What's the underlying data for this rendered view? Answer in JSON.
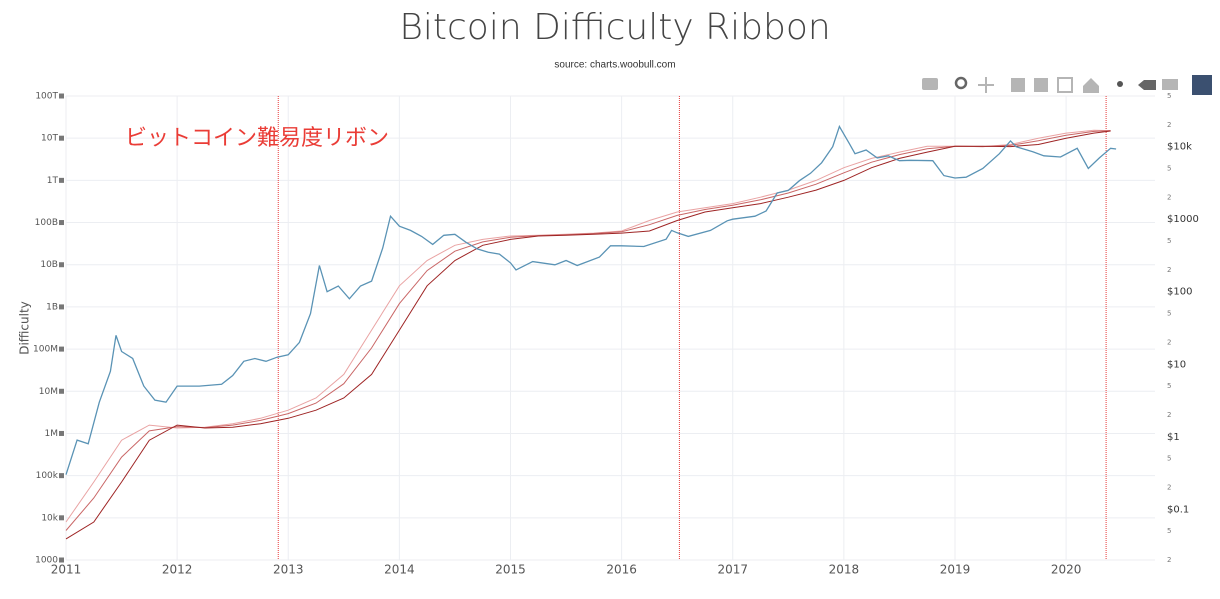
{
  "chart_data": {
    "type": "line",
    "title": "Bitcoin Difficulty Ribbon",
    "subtitle": "source: charts.woobull.com",
    "annotation": "ビットコイン難易度リボン",
    "ylabel": "Difficulty",
    "log_y": true,
    "log_y2": true,
    "grid": true,
    "xlim": [
      2011,
      2020.8
    ],
    "xticks": [
      2011,
      2012,
      2013,
      2014,
      2015,
      2016,
      2017,
      2018,
      2019,
      2020
    ],
    "ylim": [
      1000,
      100000000000000.0
    ],
    "yticks": [
      1000,
      {
        "value": 10000.0,
        "label": "10k"
      },
      {
        "value": 100000.0,
        "label": "100k"
      },
      {
        "value": 1000000.0,
        "label": "1M"
      },
      {
        "value": 10000000.0,
        "label": "10M"
      },
      {
        "value": 100000000.0,
        "label": "100M"
      },
      {
        "value": 1000000000.0,
        "label": "1B"
      },
      {
        "value": 10000000000.0,
        "label": "10B"
      },
      {
        "value": 100000000000.0,
        "label": "100B"
      },
      {
        "value": 1000000000000.0,
        "label": "1T"
      },
      {
        "value": 10000000000000.0,
        "label": "10T"
      },
      {
        "value": 100000000000000.0,
        "label": "100T"
      }
    ],
    "y2lim": [
      0.02,
      50000
    ],
    "y2ticks": [
      {
        "value": 0.02,
        "label": "2"
      },
      {
        "value": 0.05,
        "label": "5"
      },
      {
        "value": 0.1,
        "label": "$0.1"
      },
      {
        "value": 0.2,
        "label": "2"
      },
      {
        "value": 0.5,
        "label": "5"
      },
      {
        "value": 1,
        "label": "$1"
      },
      2,
      5,
      {
        "value": 10,
        "label": "$10"
      },
      {
        "value": 20,
        "label": "2"
      },
      {
        "value": 50,
        "label": "5"
      },
      {
        "value": 100,
        "label": "$100"
      },
      {
        "value": 200,
        "label": "2"
      },
      {
        "value": 500,
        "label": "5"
      },
      {
        "value": 1000,
        "label": "$1000"
      },
      {
        "value": 2000,
        "label": "2"
      },
      {
        "value": 5000,
        "label": "5"
      },
      {
        "value": 10000,
        "label": "$10k"
      },
      {
        "value": 20000,
        "label": "2"
      },
      {
        "value": 50000,
        "label": "5"
      }
    ],
    "x": [
      2011,
      2011.25,
      2011.5,
      2011.75,
      2012,
      2012.25,
      2012.5,
      2012.75,
      2013,
      2013.25,
      2013.5,
      2013.75,
      2014,
      2014.25,
      2014.5,
      2014.75,
      2015,
      2015.25,
      2015.5,
      2015.75,
      2016,
      2016.25,
      2016.5,
      2016.75,
      2017,
      2017.25,
      2017.5,
      2017.75,
      2018,
      2018.25,
      2018.5,
      2018.75,
      2019,
      2019.25,
      2019.5,
      2019.75,
      2020,
      2020.25,
      2020.4
    ],
    "series": [
      {
        "color": "#e9a3a3",
        "values": [
          7940.0,
          70800.0,
          692000.0,
          1580000.0,
          1350000.0,
          1410000.0,
          1700000.0,
          2290000.0,
          3550000.0,
          6920000.0,
          25100000.0,
          282000000.0,
          3160000000.0,
          12600000000.0,
          28800000000.0,
          39800000000.0,
          47900000000.0,
          50100000000.0,
          52500000000.0,
          56200000000.0,
          63100000000.0,
          112000000000.0,
          178000000000.0,
          224000000000.0,
          282000000000.0,
          398000000000.0,
          589000000000.0,
          1000000000000.0,
          2000000000000.0,
          3310000000000.0,
          4680000000000.0,
          6460000000000.0,
          6460000000000.0,
          6310000000000.0,
          7080000000000.0,
          10000000000000.0,
          13200000000000.0,
          15500000000000.0,
          15100000000000.0
        ]
      },
      {
        "color": "#c96666",
        "values": [
          5010.0,
          29500.0,
          275000.0,
          1150000.0,
          1450000.0,
          1380000.0,
          1580000.0,
          2040000.0,
          2950000.0,
          5250000.0,
          15100000.0,
          107000000.0,
          1200000000.0,
          7240000000.0,
          20900000000.0,
          34700000000.0,
          44700000000.0,
          49000000000.0,
          51300000000.0,
          55000000000.0,
          60300000000.0,
          89100000000.0,
          148000000000.0,
          204000000000.0,
          257000000000.0,
          347000000000.0,
          501000000000.0,
          813000000000.0,
          1510000000000.0,
          2690000000000.0,
          4070000000000.0,
          5620000000000.0,
          6460000000000.0,
          6310000000000.0,
          6760000000000.0,
          8710000000000.0,
          11700000000000.0,
          14500000000000.0,
          15100000000000.0
        ]
      },
      {
        "color": "#9e2424",
        "values": [
          3160.0,
          7940.0,
          70800.0,
          692000.0,
          1580000.0,
          1350000.0,
          1410000.0,
          1700000.0,
          2290000.0,
          3550000.0,
          6920000.0,
          25100000.0,
          282000000.0,
          3160000000.0,
          12600000000.0,
          28800000000.0,
          39800000000.0,
          47900000000.0,
          50100000000.0,
          52500000000.0,
          56200000000.0,
          63100000000.0,
          112000000000.0,
          178000000000.0,
          224000000000.0,
          282000000000.0,
          398000000000.0,
          589000000000.0,
          1000000000000.0,
          2000000000000.0,
          3310000000000.0,
          4680000000000.0,
          6460000000000.0,
          6460000000000.0,
          6310000000000.0,
          7080000000000.0,
          10000000000000.0,
          13200000000000.0,
          14800000000000.0
        ]
      },
      {
        "color": "#5a93b5",
        "axis": "y2",
        "x": [
          2011,
          2011.1,
          2011.2,
          2011.3,
          2011.4,
          2011.45,
          2011.5,
          2011.6,
          2011.7,
          2011.8,
          2011.9,
          2012,
          2012.2,
          2012.4,
          2012.5,
          2012.6,
          2012.7,
          2012.8,
          2012.9,
          2013,
          2013.1,
          2013.2,
          2013.28,
          2013.35,
          2013.45,
          2013.55,
          2013.65,
          2013.75,
          2013.85,
          2013.92,
          2014,
          2014.1,
          2014.2,
          2014.3,
          2014.4,
          2014.5,
          2014.6,
          2014.7,
          2014.8,
          2014.9,
          2015,
          2015.05,
          2015.2,
          2015.4,
          2015.5,
          2015.6,
          2015.8,
          2015.9,
          2016,
          2016.2,
          2016.4,
          2016.45,
          2016.5,
          2016.6,
          2016.8,
          2016.95,
          2017,
          2017.2,
          2017.3,
          2017.4,
          2017.5,
          2017.6,
          2017.7,
          2017.8,
          2017.9,
          2017.96,
          2018.05,
          2018.1,
          2018.2,
          2018.3,
          2018.4,
          2018.5,
          2018.6,
          2018.8,
          2018.9,
          2019,
          2019.1,
          2019.25,
          2019.4,
          2019.5,
          2019.55,
          2019.7,
          2019.8,
          2019.95,
          2020.1,
          2020.2,
          2020.3,
          2020.4,
          2020.45
        ],
        "values": [
          0.3,
          0.9,
          0.8,
          3,
          8,
          25,
          15,
          12,
          5,
          3.2,
          3,
          5,
          5,
          5.3,
          7,
          11,
          12,
          11,
          12.5,
          13.5,
          20,
          50,
          230,
          100,
          120,
          80,
          120,
          140,
          400,
          1100,
          800,
          700,
          580,
          450,
          600,
          620,
          480,
          390,
          350,
          330,
          250,
          200,
          260,
          235,
          270,
          230,
          300,
          430,
          430,
          420,
          530,
          700,
          650,
          580,
          700,
          950,
          1000,
          1100,
          1300,
          2300,
          2500,
          3400,
          4300,
          6000,
          10000,
          19000,
          11000,
          8000,
          9000,
          7000,
          7500,
          6400,
          6500,
          6400,
          4000,
          3700,
          3800,
          5000,
          8000,
          12000,
          10000,
          8500,
          7500,
          7200,
          9500,
          5000,
          7000,
          9500,
          9300
        ]
      }
    ],
    "vlines": {
      "x": [
        2012.91,
        2016.52,
        2020.36
      ],
      "color": "#e83a3a"
    },
    "annotation_color": "#ea3c36"
  }
}
